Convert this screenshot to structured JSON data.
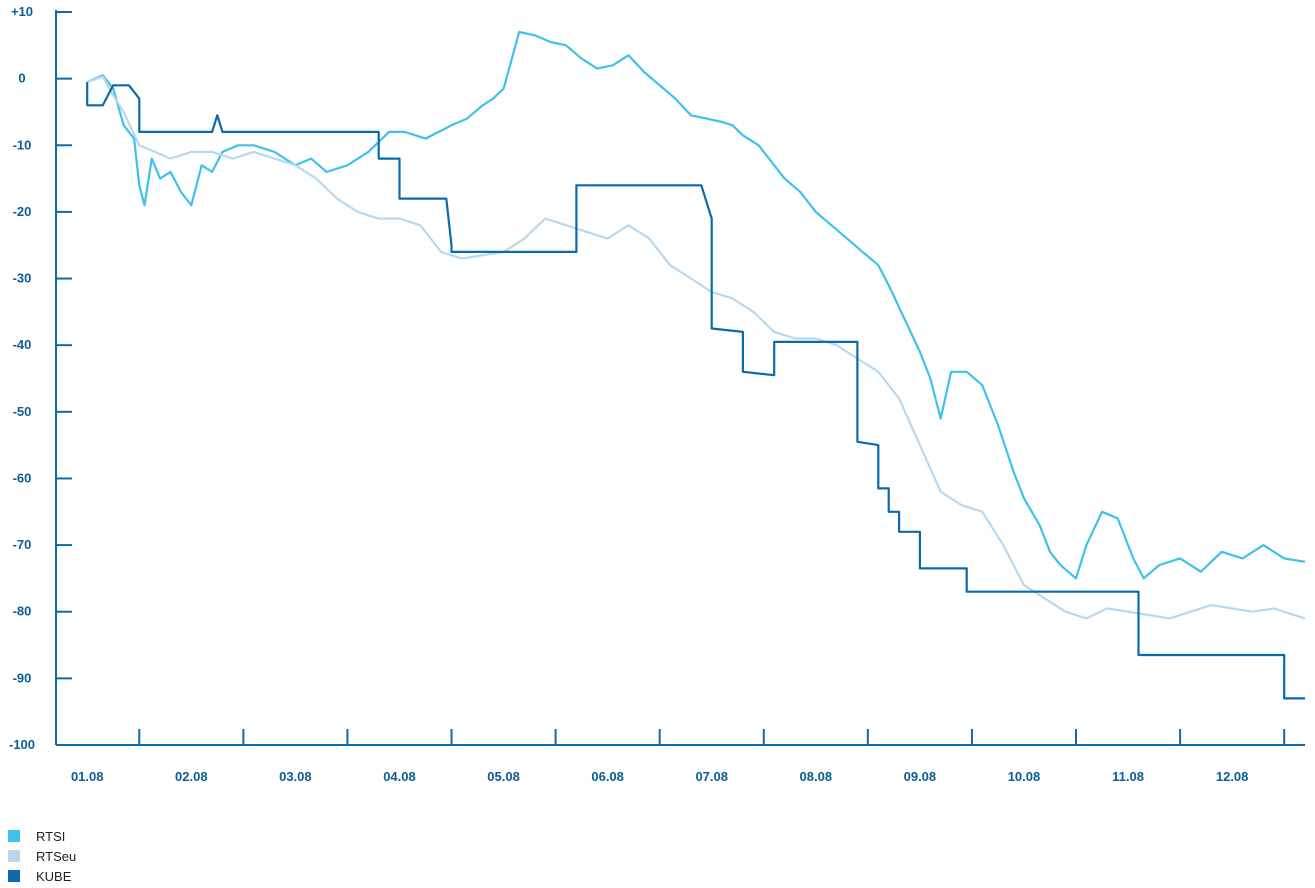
{
  "chart_data": {
    "type": "line",
    "title": "",
    "xlabel": "",
    "ylabel": "",
    "ylim": [
      -100,
      10
    ],
    "yticks": [
      10,
      0,
      -10,
      -20,
      -30,
      -40,
      -50,
      -60,
      -70,
      -80,
      -90,
      -100
    ],
    "ytick_labels": [
      "+10",
      "0",
      "-10",
      "-20",
      "-30",
      "-40",
      "-50",
      "-60",
      "-70",
      "-80",
      "-90",
      "-100"
    ],
    "xlim": [
      0.7,
      12.7
    ],
    "xticks": [
      1,
      2,
      3,
      4,
      5,
      6,
      7,
      8,
      9,
      10,
      11,
      12
    ],
    "xtick_labels": [
      "01.08",
      "02.08",
      "03.08",
      "04.08",
      "05.08",
      "06.08",
      "07.08",
      "08.08",
      "09.08",
      "10.08",
      "11.08",
      "12.08"
    ],
    "grid": false,
    "legend_position": "bottom-left",
    "series": [
      {
        "name": "RTSI",
        "color": "#3fc1ea",
        "x": [
          1.0,
          1.15,
          1.25,
          1.35,
          1.45,
          1.5,
          1.55,
          1.62,
          1.7,
          1.8,
          1.9,
          2.0,
          2.1,
          2.2,
          2.3,
          2.45,
          2.6,
          2.8,
          3.0,
          3.15,
          3.3,
          3.5,
          3.7,
          3.9,
          4.05,
          4.25,
          4.5,
          4.65,
          4.8,
          4.9,
          5.0,
          5.15,
          5.3,
          5.45,
          5.6,
          5.75,
          5.9,
          6.05,
          6.2,
          6.35,
          6.5,
          6.65,
          6.8,
          6.95,
          7.1,
          7.2,
          7.3,
          7.45,
          7.55,
          7.7,
          7.85,
          8.0,
          8.15,
          8.3,
          8.45,
          8.6,
          8.7,
          8.85,
          9.0,
          9.1,
          9.2,
          9.3,
          9.45,
          9.6,
          9.75,
          9.9,
          10.0,
          10.15,
          10.25,
          10.35,
          10.5,
          10.6,
          10.75,
          10.9,
          11.05,
          11.15,
          11.3,
          11.5,
          11.7,
          11.9,
          12.1,
          12.3,
          12.5,
          12.7
        ],
        "y": [
          -0.5,
          0.5,
          -1.5,
          -7,
          -9,
          -16,
          -19,
          -12,
          -15,
          -14,
          -17,
          -19,
          -13,
          -14,
          -11,
          -10,
          -10,
          -11,
          -13,
          -12,
          -14,
          -13,
          -11,
          -8,
          -8,
          -9,
          -7,
          -6,
          -4,
          -3,
          -1.5,
          7,
          6.5,
          5.5,
          5,
          3,
          1.5,
          2,
          3.5,
          1,
          -1,
          -3,
          -5.5,
          -6,
          -6.5,
          -7,
          -8.5,
          -10,
          -12,
          -15,
          -17,
          -20,
          -22,
          -24,
          -26,
          -28,
          -31,
          -36,
          -41,
          -45,
          -51,
          -44,
          -44,
          -46,
          -52,
          -59,
          -63,
          -67,
          -71,
          -73,
          -75,
          -70,
          -65,
          -66,
          -72,
          -75,
          -73,
          -72,
          -74,
          -71,
          -72,
          -70,
          -72,
          -72.5
        ]
      },
      {
        "name": "RTSeu",
        "color": "#b9d8ee",
        "x": [
          1.0,
          1.15,
          1.25,
          1.35,
          1.5,
          1.65,
          1.8,
          2.0,
          2.2,
          2.4,
          2.6,
          2.8,
          3.0,
          3.2,
          3.4,
          3.6,
          3.8,
          4.0,
          4.2,
          4.4,
          4.6,
          4.8,
          5.0,
          5.2,
          5.4,
          5.6,
          5.8,
          6.0,
          6.2,
          6.4,
          6.6,
          6.8,
          7.0,
          7.2,
          7.4,
          7.6,
          7.8,
          8.0,
          8.2,
          8.4,
          8.6,
          8.8,
          9.0,
          9.2,
          9.4,
          9.6,
          9.8,
          10.0,
          10.2,
          10.4,
          10.6,
          10.8,
          11.0,
          11.2,
          11.4,
          11.6,
          11.8,
          12.0,
          12.2,
          12.4,
          12.7
        ],
        "y": [
          -0.5,
          0.3,
          -2.5,
          -5,
          -10,
          -11,
          -12,
          -11,
          -11,
          -12,
          -11,
          -12,
          -13,
          -15,
          -18,
          -20,
          -21,
          -21,
          -22,
          -26,
          -27,
          -26.5,
          -26,
          -24,
          -21,
          -22,
          -23,
          -24,
          -22,
          -24,
          -28,
          -30,
          -32,
          -33,
          -35,
          -38,
          -39,
          -39,
          -40,
          -42,
          -44,
          -48,
          -55,
          -62,
          -64,
          -65,
          -70,
          -76,
          -78,
          -80,
          -81,
          -79.5,
          -80,
          -80.5,
          -81,
          -80,
          -79,
          -79.5,
          -80,
          -79.5,
          -81
        ]
      },
      {
        "name": "KUBE",
        "color": "#0b6aad",
        "x": [
          1.0,
          1.0,
          1.15,
          1.25,
          1.4,
          1.5,
          1.5,
          2.0,
          2.2,
          2.25,
          2.3,
          2.4,
          3.0,
          3.8,
          3.8,
          4.0,
          4.0,
          4.45,
          4.5,
          4.5,
          5.0,
          5.7,
          5.7,
          6.2,
          6.9,
          7.0,
          7.0,
          7.3,
          7.3,
          7.6,
          7.6,
          8.0,
          8.4,
          8.4,
          8.6,
          8.6,
          8.7,
          8.7,
          8.8,
          8.8,
          9.0,
          9.0,
          9.45,
          9.45,
          9.7,
          9.7,
          10.0,
          11.1,
          11.1,
          12.5,
          12.5,
          12.7
        ],
        "y": [
          -0.5,
          -4,
          -4,
          -1,
          -1,
          -3,
          -8,
          -8,
          -8,
          -5.5,
          -8,
          -8,
          -8,
          -8,
          -12,
          -12,
          -18,
          -18,
          -25,
          -26,
          -26,
          -26,
          -16,
          -16,
          -16,
          -21,
          -37.5,
          -38,
          -44,
          -44.5,
          -39.5,
          -39.5,
          -39.5,
          -54.5,
          -55,
          -61.5,
          -61.5,
          -65,
          -65,
          -68,
          -68,
          -73.5,
          -73.5,
          -77,
          -77,
          -77,
          -77,
          -77,
          -86.5,
          -86.5,
          -93,
          -93
        ]
      }
    ]
  },
  "legend": {
    "items": [
      {
        "label": "RTSI",
        "color": "#3fc1ea"
      },
      {
        "label": "RTSeu",
        "color": "#b9d8ee"
      },
      {
        "label": "KUBE",
        "color": "#0b6aad"
      }
    ]
  }
}
